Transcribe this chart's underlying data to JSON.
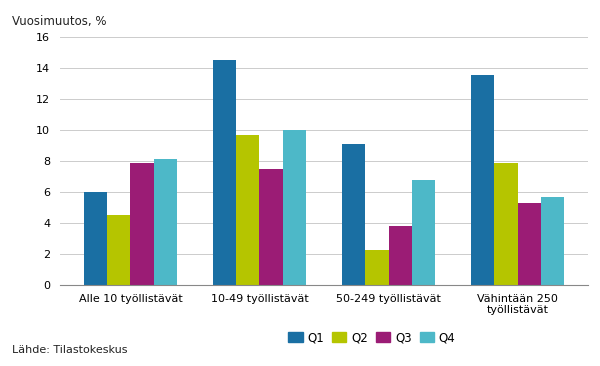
{
  "categories": [
    "Alle 10 työllistävät",
    "10-49 työllistävät",
    "50-249 työllistävät",
    "Vähintään 250\ntyöllistävät"
  ],
  "series": {
    "Q1": [
      6.0,
      14.5,
      9.1,
      13.5
    ],
    "Q2": [
      4.5,
      9.7,
      2.3,
      7.9
    ],
    "Q3": [
      7.9,
      7.5,
      3.8,
      5.3
    ],
    "Q4": [
      8.1,
      10.0,
      6.8,
      5.7
    ]
  },
  "colors": {
    "Q1": "#1a6fa3",
    "Q2": "#b5c500",
    "Q3": "#9b1c75",
    "Q4": "#4db8c8"
  },
  "top_label": "Vuosimuutos, %",
  "ylim": [
    0,
    16
  ],
  "yticks": [
    0,
    2,
    4,
    6,
    8,
    10,
    12,
    14,
    16
  ],
  "source": "Lähde: Tilastokeskus",
  "bar_width": 0.18,
  "background_color": "#ffffff",
  "grid_color": "#cccccc"
}
